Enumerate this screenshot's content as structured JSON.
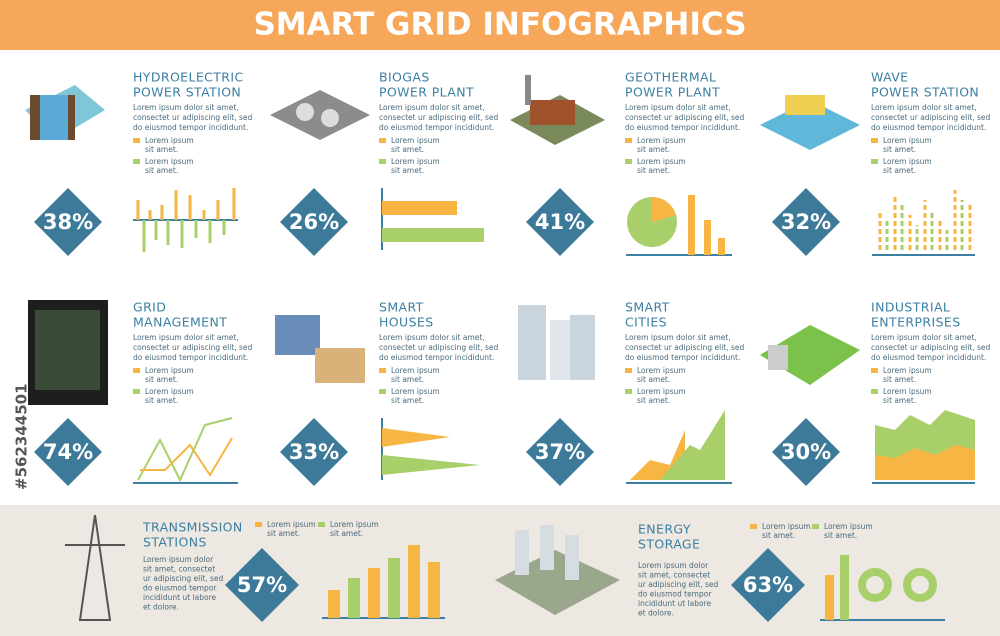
{
  "header": {
    "title": "SMART GRID INFOGRAPHICS"
  },
  "watermark": "#562344501",
  "cards": [
    {
      "title": [
        "HYDROELECTRIC",
        "POWER STATION"
      ],
      "text": [
        "Lorem ipsum dolor sit amet,",
        "consectet ur adipiscing elit, sed",
        "do eiusmod tempor incididunt."
      ],
      "legend": [
        [
          "Lorem ipsum",
          "sit amet."
        ],
        [
          "Lorem ipsum",
          "sit amet."
        ]
      ],
      "percent": "38%"
    },
    {
      "title": [
        "BIOGAS",
        "POWER PLANT"
      ],
      "text": [
        "Lorem ipsum dolor sit amet,",
        "consectet ur adipiscing elit, sed",
        "do eiusmod tempor incididunt."
      ],
      "legend": [
        [
          "Lorem ipsum",
          "sit amet."
        ],
        [
          "Lorem ipsum",
          "sit amet."
        ]
      ],
      "percent": "26%"
    },
    {
      "title": [
        "GEOTHERMAL",
        "POWER PLANT"
      ],
      "text": [
        "Lorem ipsum dolor sit amet,",
        "consectet ur adipiscing elit, sed",
        "do eiusmod tempor incididunt."
      ],
      "legend": [
        [
          "Lorem ipsum",
          "sit amet."
        ],
        [
          "Lorem ipsum",
          "sit amet."
        ]
      ],
      "percent": "41%"
    },
    {
      "title": [
        "WAVE",
        "POWER STATION"
      ],
      "text": [
        "Lorem ipsum dolor sit amet,",
        "consectet ur adipiscing elit, sed",
        "do eiusmod tempor incididunt."
      ],
      "legend": [
        [
          "Lorem ipsum",
          "sit amet."
        ],
        [
          "Lorem ipsum",
          "sit amet."
        ]
      ],
      "percent": "32%"
    },
    {
      "title": [
        "GRID",
        "MANAGEMENT"
      ],
      "text": [
        "Lorem ipsum dolor sit amet,",
        "consectet ur adipiscing elit, sed",
        "do eiusmod tempor incididunt."
      ],
      "legend": [
        [
          "Lorem ipsum",
          "sit amet."
        ],
        [
          "Lorem ipsum",
          "sit amet."
        ]
      ],
      "percent": "74%"
    },
    {
      "title": [
        "SMART",
        "HOUSES"
      ],
      "text": [
        "Lorem ipsum dolor sit amet,",
        "consectet ur adipiscing elit, sed",
        "do eiusmod tempor incididunt."
      ],
      "legend": [
        [
          "Lorem ipsum",
          "sit amet."
        ],
        [
          "Lorem ipsum",
          "sit amet."
        ]
      ],
      "percent": "33%"
    },
    {
      "title": [
        "SMART",
        "CITIES"
      ],
      "text": [
        "Lorem ipsum dolor sit amet,",
        "consectet ur adipiscing elit, sed",
        "do eiusmod tempor incididunt."
      ],
      "legend": [
        [
          "Lorem ipsum",
          "sit amet."
        ],
        [
          "Lorem ipsum",
          "sit amet."
        ]
      ],
      "percent": "37%"
    },
    {
      "title": [
        "INDUSTRIAL",
        "ENTERPRISES"
      ],
      "text": [
        "Lorem ipsum dolor sit amet,",
        "consectet ur adipiscing elit, sed",
        "do eiusmod tempor incididunt."
      ],
      "legend": [
        [
          "Lorem ipsum",
          "sit amet."
        ],
        [
          "Lorem ipsum",
          "sit amet."
        ]
      ],
      "percent": "30%"
    }
  ],
  "bottom": [
    {
      "title": [
        "TRANSMISSION",
        "STATIONS"
      ],
      "text": [
        "Lorem ipsum dolor",
        "sit amet, consectet",
        "ur adipiscing elit, sed",
        "do eiusmod tempor",
        "incididunt ut labore",
        "et dolore."
      ],
      "legend": [
        [
          "Lorem ipsum",
          "sit amet."
        ],
        [
          "Lorem ipsum",
          "sit amet."
        ]
      ],
      "percent": "57%"
    },
    {
      "title": [
        "ENERGY",
        "STORAGE"
      ],
      "text": [
        "Lorem ipsum dolor",
        "sit amet, consectet",
        "ur adipiscing elit, sed",
        "do eiusmod tempor",
        "incididunt ut labore",
        "et dolore."
      ],
      "legend": [
        [
          "Lorem ipsum",
          "sit amet."
        ],
        [
          "Lorem ipsum",
          "sit amet."
        ]
      ],
      "percent": "63%"
    }
  ]
}
